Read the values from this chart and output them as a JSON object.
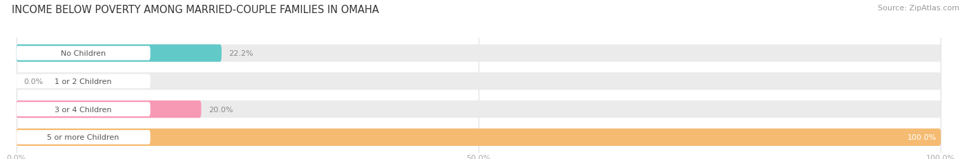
{
  "title": "INCOME BELOW POVERTY AMONG MARRIED-COUPLE FAMILIES IN OMAHA",
  "source": "Source: ZipAtlas.com",
  "categories": [
    "No Children",
    "1 or 2 Children",
    "3 or 4 Children",
    "5 or more Children"
  ],
  "values": [
    22.2,
    0.0,
    20.0,
    100.0
  ],
  "bar_colors": [
    "#62c9c9",
    "#aab0de",
    "#f799b5",
    "#f5bb72"
  ],
  "bar_bg_color": "#ebebeb",
  "label_bg_color": "#ffffff",
  "xtick_labels": [
    "0.0%",
    "50.0%",
    "100.0%"
  ],
  "background_color": "#ffffff",
  "title_fontsize": 10.5,
  "bar_label_fontsize": 8,
  "tick_fontsize": 8,
  "source_fontsize": 8
}
